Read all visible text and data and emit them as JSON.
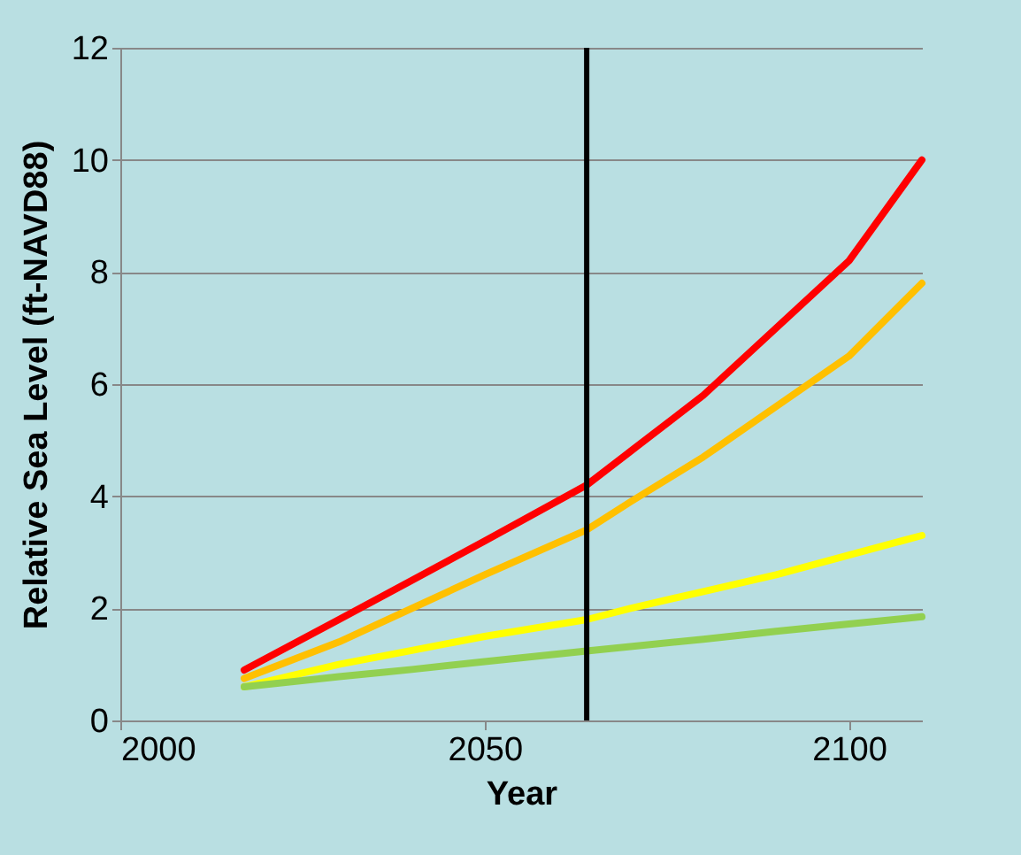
{
  "chart_data": {
    "type": "line",
    "xlabel": "Year",
    "ylabel": "Relative Sea Level (ft-NAVD88)",
    "xlim": [
      2000,
      2110
    ],
    "xticks": [
      2000,
      2050,
      2100
    ],
    "ylim": [
      0,
      12
    ],
    "yticks": [
      0,
      2,
      4,
      6,
      8,
      10,
      12
    ],
    "grid": "y",
    "legend": false,
    "marker": "none",
    "line_style": "solid",
    "x": [
      2017,
      2030,
      2040,
      2050,
      2064,
      2070,
      2080,
      2090,
      2100,
      2110
    ],
    "series": [
      {
        "color": "#ff0000",
        "values": [
          0.9,
          1.8,
          2.5,
          3.2,
          4.2,
          4.8,
          5.8,
          7.0,
          8.2,
          10.0
        ]
      },
      {
        "color": "#ffc000",
        "values": [
          0.75,
          1.4,
          2.0,
          2.6,
          3.4,
          3.9,
          4.7,
          5.6,
          6.5,
          7.8
        ]
      },
      {
        "color": "#ffff00",
        "values": [
          0.6,
          1.0,
          1.25,
          1.5,
          1.8,
          2.0,
          2.3,
          2.6,
          2.95,
          3.3
        ]
      },
      {
        "color": "#92d050",
        "values": [
          0.6,
          0.78,
          0.91,
          1.05,
          1.24,
          1.32,
          1.45,
          1.59,
          1.72,
          1.85
        ]
      }
    ],
    "ref_lines": [
      {
        "axis": "x",
        "value": 2064,
        "color": "#000000"
      }
    ]
  }
}
